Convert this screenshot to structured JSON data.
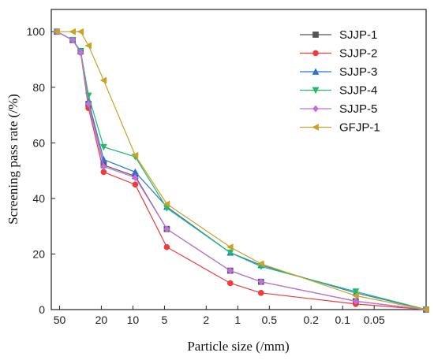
{
  "chart_data": {
    "type": "line",
    "title": "",
    "xlabel": "Particle size (/mm)",
    "ylabel": "Screening pass rate (/%)",
    "x_scale": "log-reversed",
    "xlim": [
      60,
      0.016
    ],
    "ylim": [
      0,
      108
    ],
    "x_ticks": [
      {
        "value": 50,
        "label": "50"
      },
      {
        "value": 20,
        "label": "20"
      },
      {
        "value": 10,
        "label": "10"
      },
      {
        "value": 5,
        "label": "5"
      },
      {
        "value": 2,
        "label": "2"
      },
      {
        "value": 1,
        "label": "1"
      },
      {
        "value": 0.5,
        "label": "0.5"
      },
      {
        "value": 0.2,
        "label": "0.2"
      },
      {
        "value": 0.1,
        "label": "0.1"
      },
      {
        "value": 0.05,
        "label": "0.05"
      }
    ],
    "y_ticks": [
      {
        "value": 0,
        "label": "0"
      },
      {
        "value": 20,
        "label": "20"
      },
      {
        "value": 40,
        "label": "40"
      },
      {
        "value": 60,
        "label": "60"
      },
      {
        "value": 80,
        "label": "80"
      },
      {
        "value": 100,
        "label": "100"
      }
    ],
    "grid": false,
    "legend_position": "top-right",
    "series": [
      {
        "name": "SJJP-1",
        "color": "#555555",
        "marker": "square",
        "x": [
          53,
          37.5,
          31.5,
          26.5,
          19,
          9.5,
          4.75,
          1.18,
          0.6,
          0.075,
          0.016
        ],
        "y": [
          100,
          97,
          93,
          74,
          52,
          48,
          29,
          14,
          10,
          3,
          0
        ]
      },
      {
        "name": "SJJP-2",
        "color": "#ee3b3b",
        "marker": "circle",
        "x": [
          53,
          37.5,
          31.5,
          26.5,
          19,
          9.5,
          4.75,
          1.18,
          0.6,
          0.075,
          0.016
        ],
        "y": [
          100,
          97,
          92.5,
          72.5,
          49.5,
          45,
          22.5,
          9.5,
          6,
          2,
          0
        ]
      },
      {
        "name": "SJJP-3",
        "color": "#2f6fd6",
        "marker": "triangle-up",
        "x": [
          53,
          37.5,
          31.5,
          26.5,
          19,
          9.5,
          4.75,
          1.18,
          0.6,
          0.075,
          0.016
        ],
        "y": [
          100,
          97,
          93,
          75,
          54,
          49.5,
          37,
          20.5,
          16,
          6,
          0
        ]
      },
      {
        "name": "SJJP-4",
        "color": "#22bb66",
        "marker": "triangle-down",
        "x": [
          53,
          37.5,
          31.5,
          26.5,
          19,
          9.5,
          4.75,
          1.18,
          0.6,
          0.075,
          0.016
        ],
        "y": [
          100,
          97,
          93,
          77,
          58.5,
          55,
          36.5,
          20.5,
          15.5,
          6.5,
          0
        ]
      },
      {
        "name": "SJJP-5",
        "color": "#c070e0",
        "marker": "diamond",
        "x": [
          53,
          37.5,
          31.5,
          26.5,
          19,
          9.5,
          4.75,
          1.18,
          0.6,
          0.075,
          0.016
        ],
        "y": [
          100,
          97,
          92.5,
          74,
          51.5,
          47.5,
          29,
          14,
          10,
          3,
          0
        ]
      },
      {
        "name": "GFJP-1",
        "color": "#c9a227",
        "marker": "triangle-left",
        "x": [
          53,
          37.5,
          31.5,
          26.5,
          19,
          9.5,
          4.75,
          1.18,
          0.6,
          0.075,
          0.016
        ],
        "y": [
          100,
          100,
          100,
          95,
          82.5,
          55.5,
          38,
          22.5,
          16.5,
          5,
          0
        ]
      }
    ]
  }
}
